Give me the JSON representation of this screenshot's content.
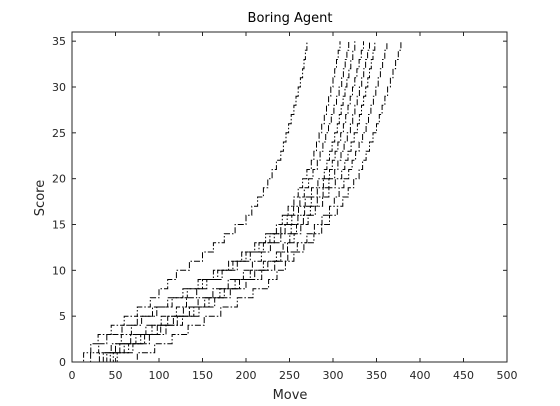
{
  "chart_data": {
    "type": "line",
    "title": "Boring Agent",
    "xlabel": "Move",
    "ylabel": "Score",
    "xlim": [
      0,
      500
    ],
    "ylim": [
      0,
      36
    ],
    "xticks": [
      0,
      50,
      100,
      150,
      200,
      250,
      300,
      350,
      400,
      450,
      500
    ],
    "yticks": [
      0,
      5,
      10,
      15,
      20,
      25,
      30,
      35
    ],
    "grid": false,
    "line_style": "dash-dot",
    "colors": {
      "line": "#000000",
      "axes": "#262626",
      "background": "#ffffff"
    },
    "series": [
      {
        "x": [
          5,
          30,
          60,
          90,
          120,
          150,
          175,
          200,
          220,
          240,
          255,
          265,
          270
        ],
        "y": [
          0,
          3,
          5,
          7,
          10,
          12,
          14,
          16,
          19,
          23,
          28,
          32,
          35
        ]
      },
      {
        "x": [
          12,
          40,
          75,
          110,
          145,
          180,
          210,
          235,
          255,
          275,
          290,
          300,
          308
        ],
        "y": [
          0,
          3,
          5,
          7,
          9,
          11,
          13,
          15,
          18,
          22,
          27,
          31,
          35
        ]
      },
      {
        "x": [
          18,
          45,
          80,
          115,
          150,
          185,
          215,
          240,
          262,
          282,
          298,
          310,
          318
        ],
        "y": [
          0,
          2,
          5,
          7,
          9,
          11,
          13,
          15,
          18,
          22,
          27,
          31,
          35
        ]
      },
      {
        "x": [
          22,
          50,
          85,
          120,
          155,
          190,
          220,
          245,
          268,
          290,
          305,
          316,
          325
        ],
        "y": [
          0,
          2,
          4,
          6,
          9,
          11,
          13,
          15,
          18,
          21,
          26,
          31,
          35
        ]
      },
      {
        "x": [
          25,
          55,
          92,
          128,
          162,
          197,
          228,
          252,
          275,
          296,
          312,
          325,
          335
        ],
        "y": [
          0,
          2,
          4,
          6,
          8,
          10,
          13,
          15,
          18,
          21,
          26,
          31,
          35
        ]
      },
      {
        "x": [
          28,
          60,
          98,
          135,
          170,
          205,
          235,
          258,
          282,
          302,
          320,
          333,
          342
        ],
        "y": [
          0,
          2,
          4,
          6,
          8,
          10,
          12,
          15,
          18,
          21,
          26,
          31,
          35
        ]
      },
      {
        "x": [
          30,
          65,
          102,
          140,
          175,
          210,
          240,
          263,
          288,
          310,
          328,
          340,
          348
        ],
        "y": [
          0,
          2,
          4,
          6,
          8,
          10,
          12,
          15,
          18,
          21,
          26,
          31,
          35
        ]
      },
      {
        "x": [
          34,
          70,
          108,
          146,
          182,
          218,
          248,
          270,
          296,
          318,
          338,
          352,
          362
        ],
        "y": [
          0,
          2,
          4,
          6,
          8,
          10,
          12,
          14,
          17,
          21,
          26,
          31,
          35
        ]
      },
      {
        "x": [
          38,
          75,
          115,
          152,
          190,
          226,
          255,
          278,
          305,
          330,
          350,
          366,
          378
        ],
        "y": [
          0,
          1,
          3,
          5,
          7,
          9,
          12,
          14,
          17,
          21,
          26,
          31,
          35
        ]
      }
    ]
  }
}
